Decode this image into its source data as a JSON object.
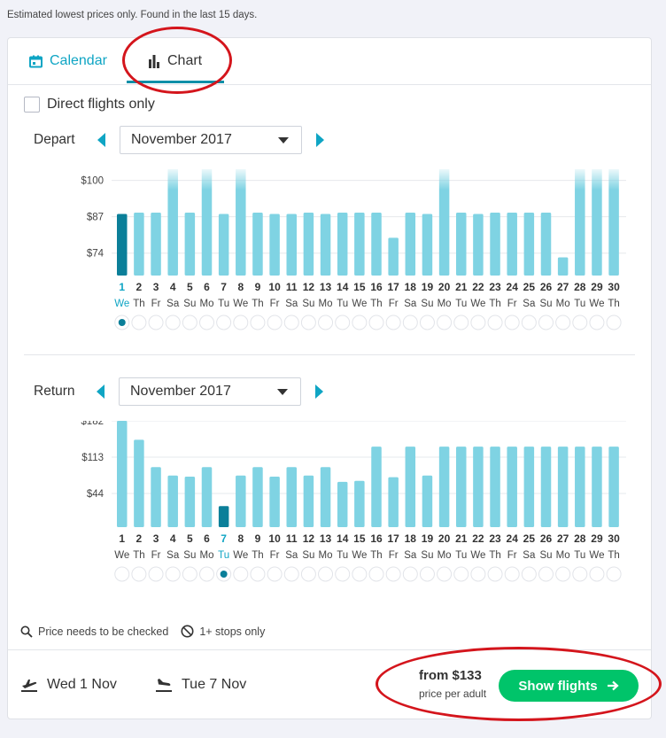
{
  "note": "Estimated lowest prices only. Found in the last 15 days.",
  "tabs": {
    "calendar": "Calendar",
    "chart": "Chart"
  },
  "direct_flights_label": "Direct flights only",
  "depart": {
    "label": "Depart",
    "month": "November 2017"
  },
  "return": {
    "label": "Return",
    "month": "November 2017"
  },
  "legend": {
    "check": "Price needs to be checked",
    "stops": "1+ stops only"
  },
  "trip": {
    "out": "Wed 1 Nov",
    "back": "Tue 7 Nov"
  },
  "price": {
    "from": "from $133",
    "per": "price per adult"
  },
  "show_flights": "Show flights",
  "colors": {
    "bar": "#7fd3e3",
    "bar_selected": "#0b7f99",
    "accent": "#0fa5c4",
    "button": "#00c46a",
    "annotation": "#d4151c"
  },
  "chart_data": [
    {
      "type": "bar",
      "name": "depart",
      "yticks": [
        "$100",
        "$87",
        "$74"
      ],
      "ytick_values": [
        100,
        87,
        74
      ],
      "ylim": [
        66,
        104
      ],
      "days": [
        "1",
        "2",
        "3",
        "4",
        "5",
        "6",
        "7",
        "8",
        "9",
        "10",
        "11",
        "12",
        "13",
        "14",
        "15",
        "16",
        "17",
        "18",
        "19",
        "20",
        "21",
        "22",
        "23",
        "24",
        "25",
        "26",
        "27",
        "28",
        "29",
        "30"
      ],
      "weekdays": [
        "We",
        "Th",
        "Fr",
        "Sa",
        "Su",
        "Mo",
        "Tu",
        "We",
        "Th",
        "Fr",
        "Sa",
        "Su",
        "Mo",
        "Tu",
        "We",
        "Th",
        "Fr",
        "Sa",
        "Su",
        "Mo",
        "Tu",
        "We",
        "Th",
        "Fr",
        "Sa",
        "Su",
        "Mo",
        "Tu",
        "We",
        "Th"
      ],
      "values": [
        88,
        88.5,
        88.5,
        104,
        88.5,
        104,
        88,
        104,
        88.5,
        88,
        88,
        88.5,
        88,
        88.5,
        88.5,
        88.5,
        79.5,
        88.5,
        88,
        104,
        88.5,
        88,
        88.5,
        88.5,
        88.5,
        88.5,
        72.5,
        104,
        104,
        104
      ],
      "over_range": [
        4,
        6,
        8,
        20,
        28,
        29,
        30
      ],
      "selected": 1
    },
    {
      "type": "bar",
      "name": "return",
      "yticks": [
        "$182",
        "$113",
        "$44"
      ],
      "ytick_values": [
        182,
        113,
        44
      ],
      "ylim": [
        -20,
        182
      ],
      "days": [
        "1",
        "2",
        "3",
        "4",
        "5",
        "6",
        "7",
        "8",
        "9",
        "10",
        "11",
        "12",
        "13",
        "14",
        "15",
        "16",
        "17",
        "18",
        "19",
        "20",
        "21",
        "22",
        "23",
        "24",
        "25",
        "26",
        "27",
        "28",
        "29",
        "30"
      ],
      "weekdays": [
        "We",
        "Th",
        "Fr",
        "Sa",
        "Su",
        "Mo",
        "Tu",
        "We",
        "Th",
        "Fr",
        "Sa",
        "Su",
        "Mo",
        "Tu",
        "We",
        "Th",
        "Fr",
        "Sa",
        "Su",
        "Mo",
        "Tu",
        "We",
        "Th",
        "Fr",
        "Sa",
        "Su",
        "Mo",
        "Tu",
        "We",
        "Th"
      ],
      "values": [
        182,
        146,
        94,
        78,
        76,
        94,
        20,
        78,
        94,
        76,
        94,
        78,
        94,
        66,
        68,
        133,
        75,
        133,
        78,
        133,
        133,
        133,
        133,
        133,
        133,
        133,
        133,
        133,
        133,
        133
      ],
      "selected": 7
    }
  ]
}
